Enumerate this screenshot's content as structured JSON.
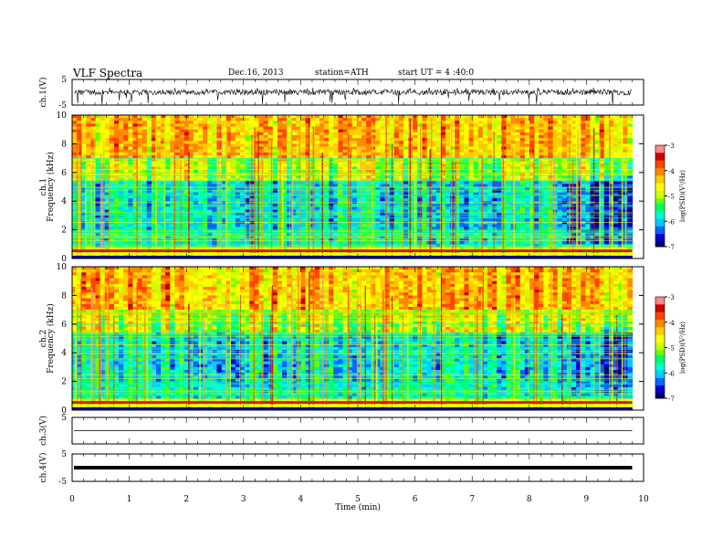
{
  "header": {
    "title": "VLF Spectra",
    "date": "Dec.16, 2013",
    "station": "station=ATH",
    "start": "start UT = 4 :40:0"
  },
  "colors": {
    "spectrogram_scale": [
      "#000066",
      "#0000cc",
      "#0066ff",
      "#00ccff",
      "#00ffcc",
      "#00ff66",
      "#66ff00",
      "#ccff00",
      "#ffff00",
      "#ffcc00",
      "#ff8800",
      "#ff4400",
      "#cc0000",
      "#ff8888",
      "#ffffff"
    ]
  },
  "chart_data": [
    {
      "type": "line",
      "panel": "ch1-waveform",
      "ylabel": "ch.1(V)",
      "ylim": [
        -5,
        5
      ],
      "yticks": [
        "5",
        "-5"
      ],
      "xlim": [
        0,
        10
      ],
      "description_values": "broadband noise fluctuating near 0 V with spikes to about -5 V",
      "series": [
        {
          "values_mean": 0,
          "values_range": [
            -5,
            1.5
          ]
        }
      ]
    },
    {
      "type": "heatmap",
      "panel": "ch1-spectrogram",
      "ylabel": "ch.1 Frequency (kHz)",
      "ylim": [
        0,
        10
      ],
      "yticks": [
        "0",
        "2",
        "4",
        "6",
        "8",
        "10"
      ],
      "xlim": [
        0,
        9.8
      ],
      "colorbar": {
        "label": "log(PSD)(V²/Hz)",
        "range": [
          -7,
          -3
        ],
        "ticks": [
          "-3",
          "-4",
          "-5",
          "-6",
          "-7"
        ]
      }
    },
    {
      "type": "heatmap",
      "panel": "ch2-spectrogram",
      "ylabel": "ch.2 Frequency (kHz)",
      "ylim": [
        0,
        10
      ],
      "yticks": [
        "0",
        "2",
        "4",
        "6",
        "8",
        "10"
      ],
      "xlim": [
        0,
        9.8
      ],
      "colorbar": {
        "label": "log(PSD)(V²/Hz)",
        "range": [
          -7,
          -3
        ],
        "ticks": [
          "-3",
          "-4",
          "-5",
          "-6",
          "-7"
        ]
      }
    },
    {
      "type": "line",
      "panel": "ch3-waveform",
      "ylabel": "ch.3(V)",
      "ylim": [
        -5,
        5
      ],
      "yticks": [
        "5"
      ],
      "xlim": [
        0,
        10
      ],
      "series": [
        {
          "values_mean": 0
        }
      ]
    },
    {
      "type": "line",
      "panel": "ch4-waveform",
      "ylabel": "ch.4(V)",
      "ylim": [
        -5,
        5
      ],
      "yticks": [
        "5",
        "-5"
      ],
      "xlim": [
        0,
        10
      ],
      "series": [
        {
          "values_mean": 0
        }
      ]
    }
  ],
  "xaxis": {
    "label": "Time (min)",
    "ticks": [
      "0",
      "1",
      "2",
      "3",
      "4",
      "5",
      "6",
      "7",
      "8",
      "9",
      "10"
    ],
    "range": [
      0,
      10
    ]
  }
}
